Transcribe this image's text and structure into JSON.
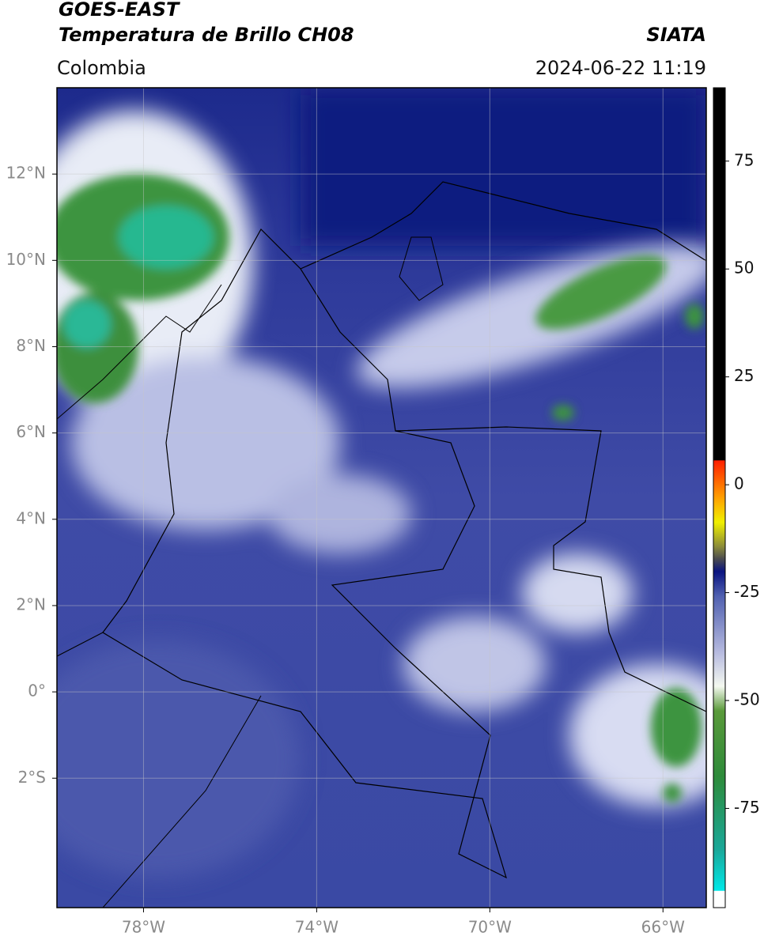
{
  "header": {
    "title_line1": "GOES-EAST",
    "title_line2": "Temperatura de Brillo CH08",
    "source": "SIATA",
    "region": "Colombia",
    "datetime": "2024-06-22 11:19"
  },
  "map": {
    "lon_range": [
      -80,
      -65
    ],
    "lat_range": [
      -5,
      14
    ],
    "lon_ticks": [
      {
        "value": -78,
        "label": "78°W"
      },
      {
        "value": -74,
        "label": "74°W"
      },
      {
        "value": -70,
        "label": "70°W"
      },
      {
        "value": -66,
        "label": "66°W"
      }
    ],
    "lat_ticks": [
      {
        "value": 12,
        "label": "12°N"
      },
      {
        "value": 10,
        "label": "10°N"
      },
      {
        "value": 8,
        "label": "8°N"
      },
      {
        "value": 6,
        "label": "6°N"
      },
      {
        "value": 4,
        "label": "4°N"
      },
      {
        "value": 2,
        "label": "2°N"
      },
      {
        "value": 0,
        "label": "0°"
      },
      {
        "value": -2,
        "label": "2°S"
      }
    ]
  },
  "colorbar": {
    "range": [
      -98,
      92
    ],
    "ticks": [
      75,
      50,
      25,
      0,
      -25,
      -50,
      -75
    ]
  }
}
